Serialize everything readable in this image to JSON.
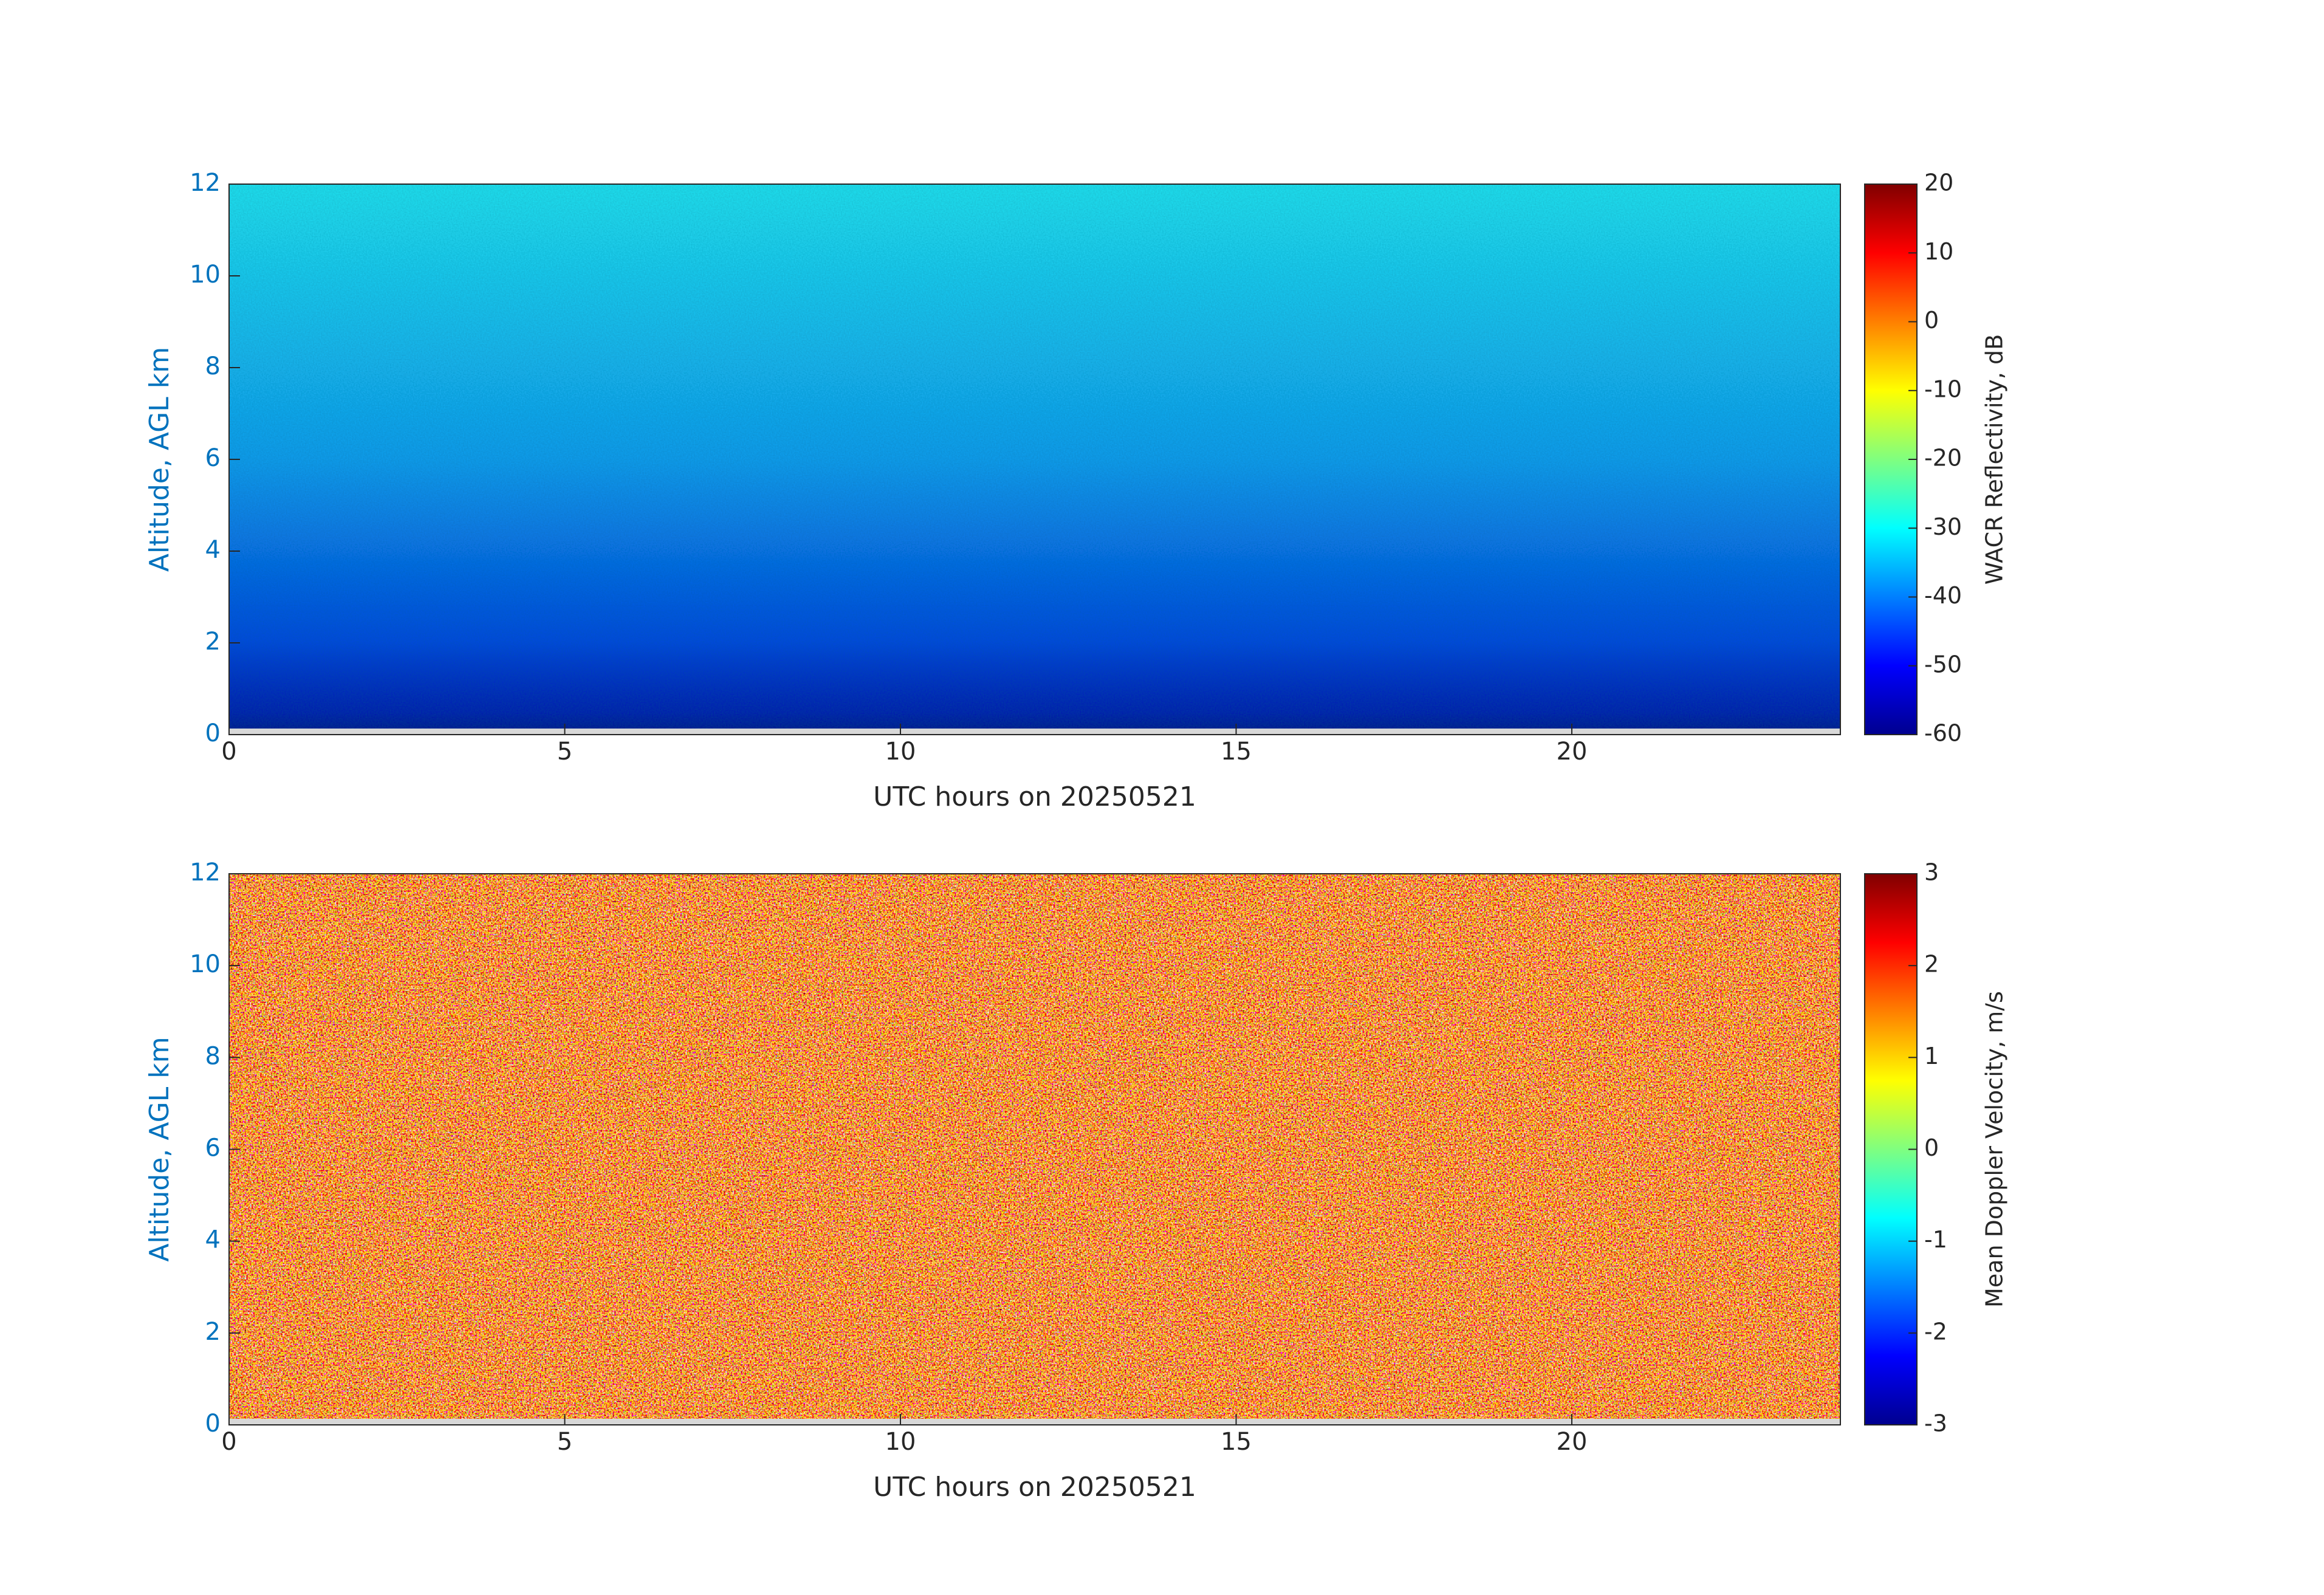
{
  "chart_data": [
    {
      "type": "heatmap",
      "xlabel": "UTC hours on 20250521",
      "ylabel": "Altitude, AGL km",
      "colorbar_label": "WACR Reflectivity, dB",
      "colormap": "jet",
      "xlim": [
        0,
        24
      ],
      "xticks": [
        0,
        5,
        10,
        15,
        20
      ],
      "ylim": [
        0,
        12
      ],
      "yticks": [
        0,
        2,
        4,
        6,
        8,
        10,
        12
      ],
      "clim": [
        -60,
        20
      ],
      "cticks": [
        -60,
        -50,
        -40,
        -30,
        -20,
        -10,
        0,
        10,
        20
      ]
    },
    {
      "type": "heatmap",
      "xlabel": "UTC hours on 20250521",
      "ylabel": "Altitude, AGL km",
      "colorbar_label": "Mean Doppler Velocity, m/s",
      "colormap": "jet",
      "xlim": [
        0,
        24
      ],
      "xticks": [
        0,
        5,
        10,
        15,
        20
      ],
      "ylim": [
        0,
        12
      ],
      "yticks": [
        0,
        2,
        4,
        6,
        8,
        10,
        12
      ],
      "clim": [
        -3,
        3
      ],
      "cticks": [
        -3,
        -2,
        -1,
        0,
        1,
        2,
        3
      ]
    }
  ]
}
